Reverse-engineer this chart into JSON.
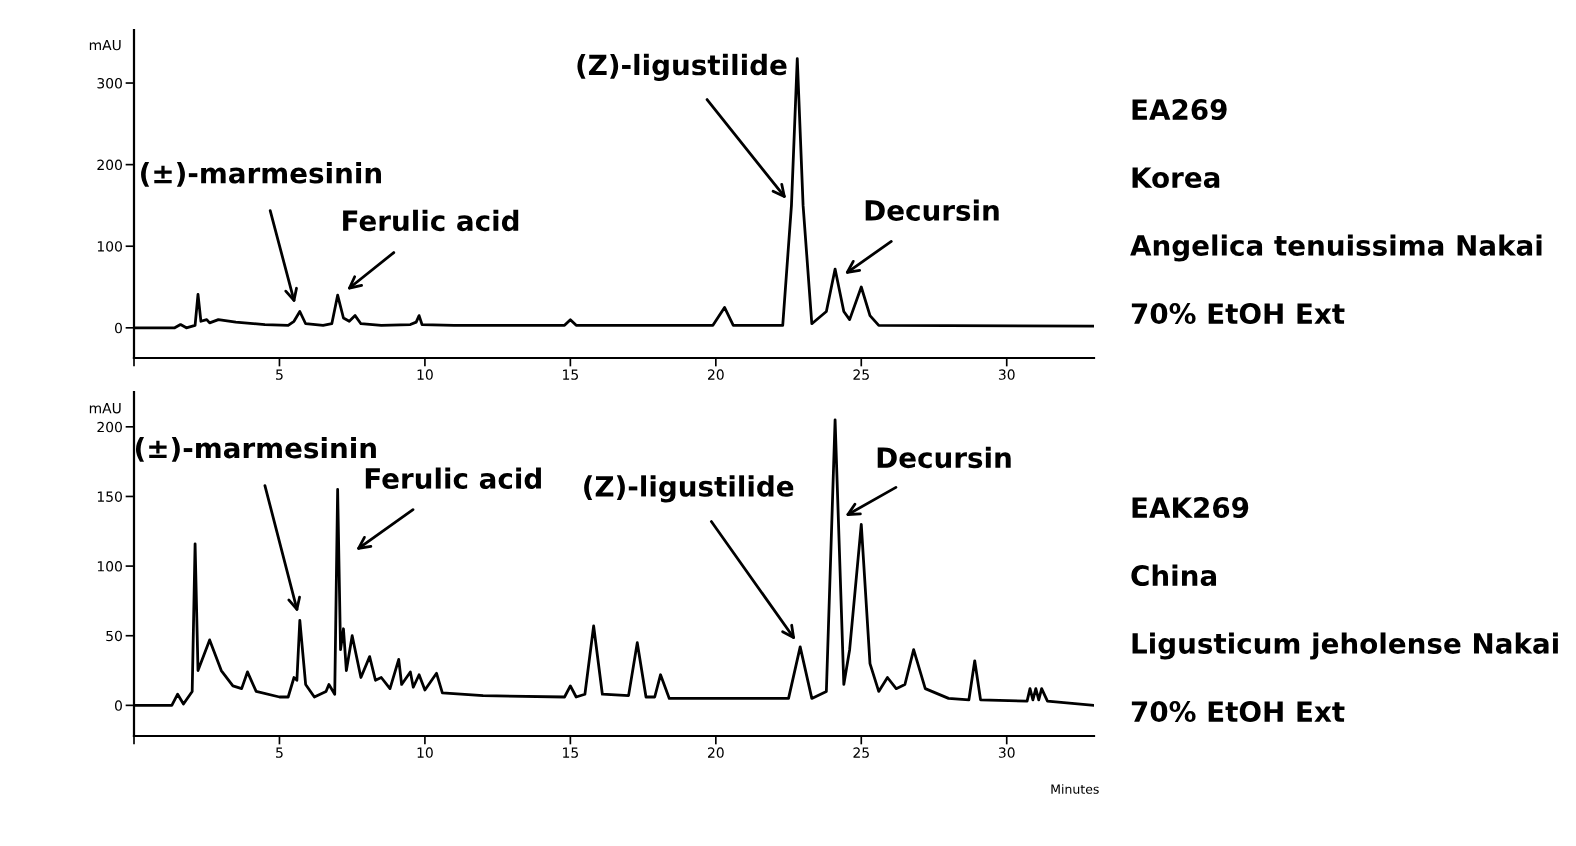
{
  "chart_data": [
    {
      "type": "line",
      "ylabel": "mAU",
      "xlim": [
        0,
        33
      ],
      "ylim": [
        -37,
        365
      ],
      "xticks": [
        {
          "value": 0,
          "label": null
        },
        5,
        10,
        15,
        20,
        25,
        30
      ],
      "yticks": [
        0,
        100,
        200,
        300
      ],
      "series": [
        {
          "color": "#000000",
          "x": [
            0,
            1.4,
            1.6,
            1.8,
            2.1,
            2.2,
            2.3,
            2.5,
            2.6,
            2.9,
            3.5,
            4.5,
            5.3,
            5.5,
            5.7,
            5.9,
            6.5,
            6.8,
            7.0,
            7.2,
            7.4,
            7.6,
            7.8,
            8.5,
            9.5,
            9.7,
            9.8,
            9.9,
            11,
            14.8,
            15,
            15.2,
            19.9,
            20.3,
            20.6,
            22.3,
            22.6,
            22.8,
            23.0,
            23.3,
            23.8,
            24.1,
            24.4,
            24.6,
            25.0,
            25.3,
            25.6,
            33
          ],
          "values": [
            0,
            0,
            4,
            0,
            3,
            41,
            8,
            10,
            6,
            10,
            7,
            4,
            3,
            8,
            20,
            5,
            3,
            5,
            40,
            12,
            8,
            15,
            5,
            3,
            4,
            7,
            15,
            4,
            3,
            3,
            10,
            3,
            3,
            25,
            3,
            3,
            150,
            330,
            150,
            5,
            20,
            72,
            20,
            10,
            50,
            15,
            3,
            2
          ]
        }
      ],
      "annotations": [
        {
          "text": "(±)-marmesinin",
          "x": 5.6,
          "y": 20
        },
        {
          "text": "Ferulic acid",
          "x": 7.1,
          "y": 40
        },
        {
          "text": "(Z)-ligustilide",
          "x": 22.6,
          "y": 150
        },
        {
          "text": "Decursin",
          "x": 24.2,
          "y": 60
        },
        "EA269",
        "Korea",
        "Angelica tenuissima Nakai",
        "70% EtOH Ext"
      ]
    },
    {
      "type": "line",
      "ylabel": "mAU",
      "xlabel": "Minutes",
      "xlim": [
        0,
        33
      ],
      "ylim": [
        -22,
        225
      ],
      "xticks": [
        {
          "value": 0,
          "label": null
        },
        5,
        10,
        15,
        20,
        25,
        30
      ],
      "yticks": [
        0,
        50,
        100,
        150,
        200
      ],
      "series": [
        {
          "color": "#000000",
          "x": [
            0,
            1.3,
            1.5,
            1.7,
            2.0,
            2.1,
            2.2,
            2.6,
            3.0,
            3.4,
            3.7,
            3.9,
            4.2,
            5.0,
            5.3,
            5.5,
            5.6,
            5.7,
            5.9,
            6.2,
            6.6,
            6.7,
            6.9,
            7.0,
            7.1,
            7.2,
            7.3,
            7.5,
            7.8,
            8.1,
            8.3,
            8.5,
            8.8,
            9.1,
            9.2,
            9.5,
            9.6,
            9.8,
            10.0,
            10.4,
            10.6,
            12,
            14.8,
            15.0,
            15.2,
            15.5,
            15.8,
            16.1,
            17.0,
            17.3,
            17.6,
            17.9,
            18.1,
            18.4,
            22.5,
            22.9,
            23.3,
            23.8,
            24.1,
            24.4,
            24.6,
            25.0,
            25.3,
            25.6,
            25.9,
            26.2,
            26.5,
            26.8,
            27.2,
            28.0,
            28.7,
            28.9,
            29.1,
            30.7,
            30.8,
            30.9,
            31.0,
            31.1,
            31.2,
            31.4,
            33
          ],
          "values": [
            0,
            0,
            8,
            1,
            10,
            116,
            25,
            47,
            25,
            14,
            12,
            24,
            10,
            6,
            6,
            20,
            18,
            61,
            15,
            6,
            10,
            15,
            8,
            155,
            40,
            55,
            25,
            50,
            20,
            35,
            18,
            20,
            12,
            33,
            15,
            24,
            13,
            22,
            11,
            23,
            9,
            7,
            6,
            14,
            6,
            8,
            57,
            8,
            7,
            45,
            6,
            6,
            22,
            5,
            5,
            42,
            5,
            10,
            205,
            15,
            40,
            130,
            30,
            10,
            20,
            12,
            15,
            40,
            12,
            5,
            4,
            32,
            4,
            3,
            12,
            4,
            12,
            4,
            12,
            3,
            0
          ]
        }
      ],
      "annotations": [
        {
          "text": "(±)-marmesinin",
          "x": 5.7,
          "y": 61
        },
        {
          "text": "Ferulic acid",
          "x": 7.4,
          "y": 108
        },
        {
          "text": "(Z)-ligustilide",
          "x": 22.9,
          "y": 42
        },
        {
          "text": "Decursin",
          "x": 24.2,
          "y": 133
        },
        "EAK269",
        "China",
        "Ligusticum jeholense Nakai",
        "70% EtOH Ext"
      ]
    }
  ]
}
